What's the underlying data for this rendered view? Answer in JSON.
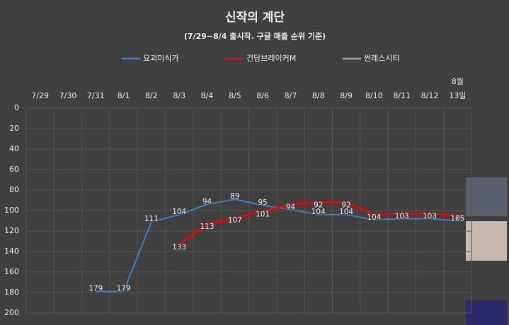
{
  "chart_data": {
    "type": "line",
    "title": "신작의 계단",
    "subtitle": "(7/29~8/4 출시작. 구글 매출 순위 기준)",
    "categories": [
      "7/29",
      "7/30",
      "7/31",
      "8/1",
      "8/2",
      "8/3",
      "8/4",
      "8/5",
      "8/6",
      "8/7",
      "8/8",
      "8/9",
      "8/10",
      "8/11",
      "8/12",
      "8월\n13일"
    ],
    "series": [
      {
        "name": "요괴미식가",
        "color": "#3d7fc4",
        "values": [
          null,
          null,
          179,
          179,
          111,
          104,
          94,
          89,
          95,
          99,
          104,
          104,
          109,
          108,
          108,
          110
        ]
      },
      {
        "name": "건담브레이커M",
        "color": "#e01010",
        "values": [
          null,
          null,
          null,
          null,
          null,
          133,
          113,
          107,
          101,
          94,
          92,
          92,
          104,
          103,
          103,
          105
        ]
      },
      {
        "name": "썬레스시티",
        "color": "#a0a0a0",
        "values": [
          null,
          null,
          null,
          null,
          null,
          null,
          null,
          null,
          null,
          null,
          null,
          null,
          null,
          null,
          null,
          null
        ]
      }
    ],
    "ylim": [
      0,
      200
    ],
    "yticks": [
      0,
      20,
      40,
      60,
      80,
      100,
      120,
      140,
      160,
      180,
      200
    ],
    "y_inverted": true,
    "grid": true,
    "legend": "top"
  }
}
